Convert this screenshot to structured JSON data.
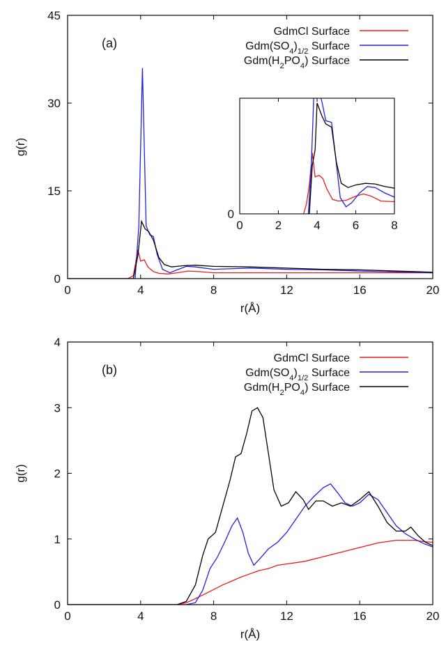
{
  "chart_data": [
    {
      "type": "line",
      "panel_label": "(a)",
      "xlabel": "r(Å)",
      "ylabel": "g(r)",
      "xlim": [
        0,
        20
      ],
      "ylim": [
        0,
        45
      ],
      "xticks": [
        0,
        4,
        8,
        12,
        16,
        20
      ],
      "yticks": [
        0,
        15,
        30,
        45
      ],
      "legend_position": "top-right",
      "series": [
        {
          "name": "GdmCl Surface",
          "color": "#e8191e",
          "points": [
            [
              0,
              0
            ],
            [
              3.3,
              0
            ],
            [
              3.6,
              0.5
            ],
            [
              3.85,
              4.9
            ],
            [
              4.0,
              3.0
            ],
            [
              4.2,
              3.2
            ],
            [
              4.4,
              2.0
            ],
            [
              4.7,
              1.2
            ],
            [
              5.0,
              0.9
            ],
            [
              5.5,
              0.8
            ],
            [
              6.0,
              1.0
            ],
            [
              6.6,
              1.3
            ],
            [
              7.2,
              1.2
            ],
            [
              8,
              1.0
            ],
            [
              10,
              1.0
            ],
            [
              12,
              1.0
            ],
            [
              16,
              1.0
            ],
            [
              20,
              1.0
            ]
          ]
        },
        {
          "name_parts": [
            "Gdm(SO",
            "4",
            ")",
            "1/2",
            " Surface"
          ],
          "color": "#2020e0",
          "points": [
            [
              0,
              0
            ],
            [
              3.7,
              0
            ],
            [
              3.9,
              9.0
            ],
            [
              4.1,
              36.0
            ],
            [
              4.3,
              9.0
            ],
            [
              4.5,
              7.5
            ],
            [
              4.7,
              7.2
            ],
            [
              4.9,
              4.2
            ],
            [
              5.2,
              1.6
            ],
            [
              5.6,
              1.0
            ],
            [
              6.0,
              1.5
            ],
            [
              6.5,
              2.1
            ],
            [
              7.0,
              2.0
            ],
            [
              8,
              1.6
            ],
            [
              10,
              1.8
            ],
            [
              12,
              1.6
            ],
            [
              14,
              1.5
            ],
            [
              16,
              1.3
            ],
            [
              20,
              1.0
            ]
          ]
        },
        {
          "name_parts": [
            "Gdm(H",
            "2",
            "PO",
            "4",
            ") Surface"
          ],
          "color": "#000000",
          "points": [
            [
              0,
              0
            ],
            [
              3.6,
              0
            ],
            [
              3.85,
              4.0
            ],
            [
              4.05,
              9.8
            ],
            [
              4.25,
              8.5
            ],
            [
              4.45,
              8.0
            ],
            [
              4.7,
              6.6
            ],
            [
              5.0,
              3.6
            ],
            [
              5.3,
              2.4
            ],
            [
              5.7,
              2.0
            ],
            [
              6.3,
              2.2
            ],
            [
              7.0,
              2.3
            ],
            [
              8,
              2.1
            ],
            [
              10,
              2.0
            ],
            [
              12,
              1.8
            ],
            [
              14,
              1.6
            ],
            [
              16,
              1.5
            ],
            [
              20,
              1.1
            ]
          ]
        }
      ],
      "inset": {
        "xlim": [
          0,
          8
        ],
        "ylim": [
          0,
          3.6
        ],
        "xticks": [
          0,
          2,
          4,
          6,
          8
        ],
        "yticks": [
          0
        ],
        "series": [
          {
            "color": "#e8191e",
            "points": [
              [
                3.3,
                0
              ],
              [
                3.45,
                0.3
              ],
              [
                3.6,
                0.9
              ],
              [
                3.75,
                1.9
              ],
              [
                3.9,
                1.15
              ],
              [
                4.1,
                1.2
              ],
              [
                4.3,
                1.1
              ],
              [
                4.5,
                0.78
              ],
              [
                4.8,
                0.45
              ],
              [
                5.1,
                0.4
              ],
              [
                5.5,
                0.42
              ],
              [
                6.0,
                0.55
              ],
              [
                6.4,
                0.62
              ],
              [
                6.8,
                0.55
              ],
              [
                7.3,
                0.4
              ],
              [
                8,
                0.38
              ]
            ]
          },
          {
            "color": "#2020e0",
            "points": [
              [
                3.55,
                0
              ],
              [
                3.7,
                1.5
              ],
              [
                3.85,
                4.0
              ],
              [
                4.0,
                4.0
              ],
              [
                4.25,
                3.5
              ],
              [
                4.45,
                2.9
              ],
              [
                4.75,
                2.85
              ],
              [
                4.95,
                1.8
              ],
              [
                5.2,
                0.5
              ],
              [
                5.5,
                0.22
              ],
              [
                5.8,
                0.35
              ],
              [
                6.2,
                0.65
              ],
              [
                6.6,
                0.85
              ],
              [
                7.0,
                0.82
              ],
              [
                7.5,
                0.65
              ],
              [
                8,
                0.52
              ]
            ]
          },
          {
            "color": "#000000",
            "points": [
              [
                3.6,
                0
              ],
              [
                3.75,
                1.5
              ],
              [
                3.9,
                2.0
              ],
              [
                4.0,
                3.45
              ],
              [
                4.25,
                3.05
              ],
              [
                4.45,
                2.8
              ],
              [
                4.75,
                2.7
              ],
              [
                5.0,
                1.6
              ],
              [
                5.25,
                0.95
              ],
              [
                5.6,
                0.82
              ],
              [
                6.0,
                0.9
              ],
              [
                6.5,
                0.95
              ],
              [
                7.0,
                0.93
              ],
              [
                7.5,
                0.85
              ],
              [
                8,
                0.8
              ]
            ]
          }
        ]
      }
    },
    {
      "type": "line",
      "panel_label": "(b)",
      "xlabel": "r(Å)",
      "ylabel": "g(r)",
      "xlim": [
        0,
        20
      ],
      "ylim": [
        0,
        4
      ],
      "xticks": [
        0,
        4,
        8,
        12,
        16,
        20
      ],
      "yticks": [
        0,
        1,
        2,
        3,
        4
      ],
      "legend_position": "top-right",
      "series": [
        {
          "name": "GdmCl Surface",
          "color": "#e8191e",
          "points": [
            [
              0,
              0
            ],
            [
              6.0,
              0
            ],
            [
              6.5,
              0.03
            ],
            [
              7.0,
              0.09
            ],
            [
              7.5,
              0.16
            ],
            [
              8.0,
              0.23
            ],
            [
              8.5,
              0.3
            ],
            [
              9.0,
              0.36
            ],
            [
              9.5,
              0.42
            ],
            [
              10.0,
              0.47
            ],
            [
              10.5,
              0.52
            ],
            [
              11.0,
              0.55
            ],
            [
              11.5,
              0.6
            ],
            [
              12.0,
              0.62
            ],
            [
              13.0,
              0.66
            ],
            [
              14.0,
              0.73
            ],
            [
              15.0,
              0.8
            ],
            [
              16.0,
              0.87
            ],
            [
              17.0,
              0.94
            ],
            [
              18.0,
              0.98
            ],
            [
              19.0,
              0.98
            ],
            [
              19.5,
              0.96
            ],
            [
              20,
              0.95
            ]
          ]
        },
        {
          "name_parts": [
            "Gdm(SO",
            "4",
            ")",
            "1/2",
            " Surface"
          ],
          "color": "#2020e0",
          "points": [
            [
              0,
              0
            ],
            [
              6.5,
              0
            ],
            [
              7.0,
              0.03
            ],
            [
              7.4,
              0.22
            ],
            [
              7.8,
              0.55
            ],
            [
              8.2,
              0.72
            ],
            [
              8.6,
              0.95
            ],
            [
              9.0,
              1.2
            ],
            [
              9.3,
              1.32
            ],
            [
              9.6,
              1.1
            ],
            [
              9.9,
              0.78
            ],
            [
              10.2,
              0.6
            ],
            [
              10.6,
              0.72
            ],
            [
              11.0,
              0.85
            ],
            [
              11.5,
              0.95
            ],
            [
              12.0,
              1.1
            ],
            [
              12.5,
              1.3
            ],
            [
              13.0,
              1.5
            ],
            [
              13.5,
              1.65
            ],
            [
              14.0,
              1.78
            ],
            [
              14.4,
              1.84
            ],
            [
              14.8,
              1.7
            ],
            [
              15.2,
              1.55
            ],
            [
              15.6,
              1.5
            ],
            [
              16.0,
              1.55
            ],
            [
              16.5,
              1.68
            ],
            [
              17.0,
              1.6
            ],
            [
              17.5,
              1.4
            ],
            [
              18.0,
              1.2
            ],
            [
              18.5,
              1.08
            ],
            [
              19.0,
              1.0
            ],
            [
              19.5,
              0.93
            ],
            [
              20,
              0.88
            ]
          ]
        },
        {
          "name_parts": [
            "Gdm(H",
            "2",
            "PO",
            "4",
            ") Surface"
          ],
          "color": "#000000",
          "points": [
            [
              0,
              0
            ],
            [
              6.0,
              0
            ],
            [
              6.5,
              0.05
            ],
            [
              7.0,
              0.3
            ],
            [
              7.4,
              0.75
            ],
            [
              7.7,
              1.0
            ],
            [
              8.1,
              1.1
            ],
            [
              8.5,
              1.5
            ],
            [
              8.9,
              1.9
            ],
            [
              9.2,
              2.25
            ],
            [
              9.5,
              2.3
            ],
            [
              9.8,
              2.6
            ],
            [
              10.1,
              2.95
            ],
            [
              10.4,
              3.0
            ],
            [
              10.7,
              2.85
            ],
            [
              11.0,
              2.3
            ],
            [
              11.3,
              1.75
            ],
            [
              11.7,
              1.5
            ],
            [
              12.1,
              1.55
            ],
            [
              12.5,
              1.72
            ],
            [
              12.9,
              1.6
            ],
            [
              13.2,
              1.45
            ],
            [
              13.6,
              1.58
            ],
            [
              14.0,
              1.58
            ],
            [
              14.5,
              1.5
            ],
            [
              15.0,
              1.55
            ],
            [
              15.5,
              1.5
            ],
            [
              16.0,
              1.6
            ],
            [
              16.5,
              1.72
            ],
            [
              17.0,
              1.5
            ],
            [
              17.5,
              1.25
            ],
            [
              18.0,
              1.12
            ],
            [
              18.5,
              1.12
            ],
            [
              18.8,
              1.18
            ],
            [
              19.2,
              1.05
            ],
            [
              19.6,
              0.95
            ],
            [
              20,
              0.9
            ]
          ]
        }
      ]
    }
  ]
}
